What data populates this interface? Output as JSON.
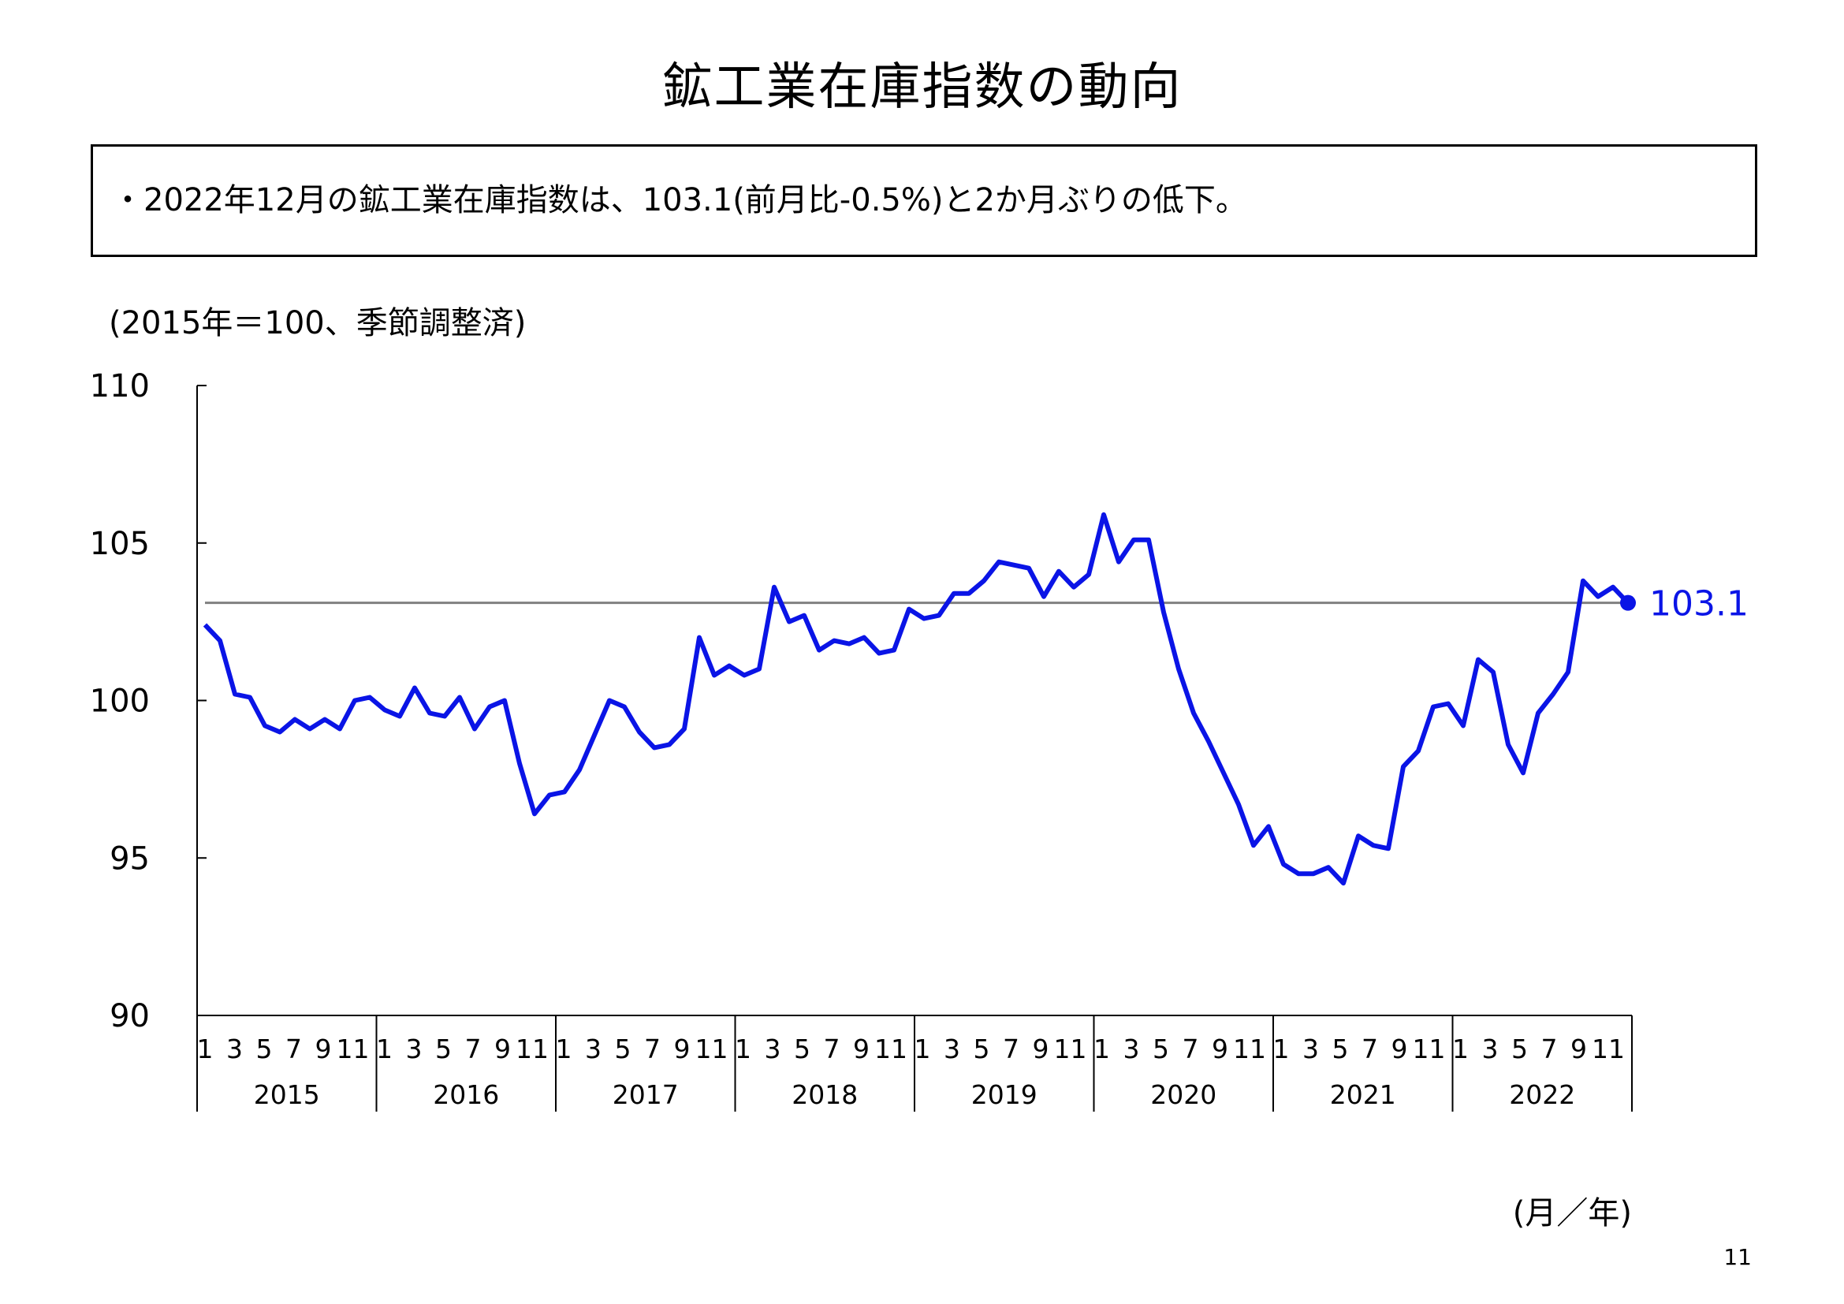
{
  "page": {
    "title": "鉱工業在庫指数の動向",
    "summary": "・2022年12月の鉱工業在庫指数は、103.1(前月比-0.5%)と2か月ぶりの低下。",
    "page_number": "11"
  },
  "chart_data": {
    "type": "line",
    "unit_note": "(2015年＝100、季節調整済)",
    "x_axis_unit": "(月／年)",
    "ylim": [
      90,
      110
    ],
    "y_ticks": [
      90,
      95,
      100,
      105,
      110
    ],
    "years": [
      "2015",
      "2016",
      "2017",
      "2018",
      "2019",
      "2020",
      "2021",
      "2022"
    ],
    "month_tick_labels": [
      "1",
      "3",
      "5",
      "7",
      "9",
      "11"
    ],
    "reference_line": 103.1,
    "end_label": "103.1",
    "series": [
      {
        "values": [
          102.4,
          101.9,
          100.2,
          100.1,
          99.2,
          99.0,
          99.4,
          99.1,
          99.4,
          99.1,
          100.0,
          100.1,
          99.7,
          99.5,
          100.4,
          99.6,
          99.5,
          100.1,
          99.1,
          99.8,
          100.0,
          98.0,
          96.4,
          97.0,
          97.1,
          97.8,
          98.9,
          100.0,
          99.8,
          99.0,
          98.5,
          98.6,
          99.1,
          102.0,
          100.8,
          101.1,
          100.8,
          101.0,
          103.6,
          102.5,
          102.7,
          101.6,
          101.9,
          101.8,
          102.0,
          101.5,
          101.6,
          102.9,
          102.6,
          102.7,
          103.4,
          103.4,
          103.8,
          104.4,
          104.3,
          104.2,
          103.3,
          104.1,
          103.6,
          104.0,
          105.9,
          104.4,
          105.1,
          105.1,
          102.8,
          101.0,
          99.6,
          98.7,
          97.7,
          96.7,
          95.4,
          96.0,
          94.8,
          94.5,
          94.5,
          94.7,
          94.2,
          95.7,
          95.4,
          95.3,
          97.9,
          98.4,
          99.8,
          99.9,
          99.2,
          101.3,
          100.9,
          98.6,
          97.7,
          99.6,
          100.2,
          100.9,
          103.8,
          103.3,
          103.6,
          103.1
        ]
      }
    ],
    "colors": {
      "series": "#0a14e6",
      "reference_line": "#808080",
      "end_label": "#0a14e6",
      "axis": "#000000"
    }
  }
}
